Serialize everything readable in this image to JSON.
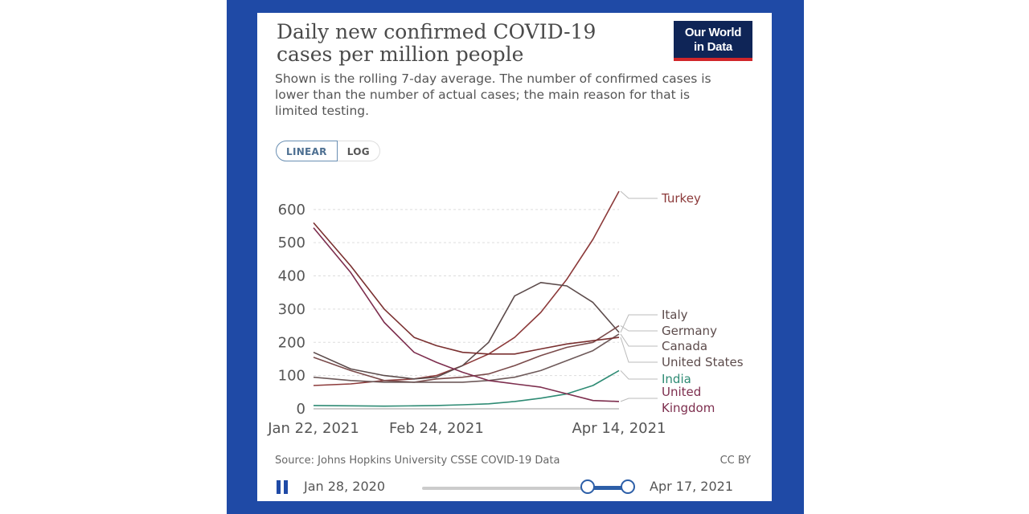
{
  "logo": {
    "line1": "Our World",
    "line2": "in Data"
  },
  "title": "Daily new confirmed COVID-19 cases per million people",
  "subtitle": "Shown is the rolling 7-day average. The number of confirmed cases is lower than the number of actual cases; the main reason for that is limited testing.",
  "scale_toggle": {
    "linear_label": "LINEAR",
    "log_label": "LOG",
    "selected": "LINEAR"
  },
  "source": "Source: Johns Hopkins University CSSE COVID-19 Data",
  "license": "CC BY",
  "timeline": {
    "start_label": "Jan 28, 2020",
    "end_label": "Apr 17, 2021"
  },
  "colors": {
    "frame": "#1f4aa6",
    "turkey": "#8c3a3a",
    "italy": "#5c4b4b",
    "germany": "#7a4b4b",
    "canada": "#6e5a5a",
    "united_states": "#7a3030",
    "india": "#2e8b74",
    "united_kingdom": "#7d2e4e"
  },
  "chart_data": {
    "type": "line",
    "title": "Daily new confirmed COVID-19 cases per million people",
    "subtitle": "Shown is the rolling 7-day average. The number of confirmed cases is lower than the number of actual cases; the main reason for that is limited testing.",
    "x_ticks": [
      "Jan 22, 2021",
      "Feb 24, 2021",
      "Apr 14, 2021"
    ],
    "x_range": [
      "2021-01-22",
      "2021-04-14"
    ],
    "y_ticks": [
      0,
      100,
      200,
      300,
      400,
      500,
      600
    ],
    "ylim": [
      0,
      660
    ],
    "grid": "horizontal dashed",
    "legend": "line labels on right",
    "series": [
      {
        "name": "Turkey",
        "color": "#8c3a3a",
        "points": [
          [
            "2021-01-22",
            70
          ],
          [
            "2021-02-01",
            75
          ],
          [
            "2021-02-10",
            85
          ],
          [
            "2021-02-18",
            90
          ],
          [
            "2021-02-24",
            100
          ],
          [
            "2021-03-03",
            130
          ],
          [
            "2021-03-10",
            165
          ],
          [
            "2021-03-17",
            215
          ],
          [
            "2021-03-24",
            290
          ],
          [
            "2021-03-31",
            390
          ],
          [
            "2021-04-07",
            510
          ],
          [
            "2021-04-14",
            655
          ]
        ]
      },
      {
        "name": "Italy",
        "color": "#5c4b4b",
        "points": [
          [
            "2021-01-22",
            170
          ],
          [
            "2021-02-01",
            120
          ],
          [
            "2021-02-10",
            100
          ],
          [
            "2021-02-18",
            90
          ],
          [
            "2021-02-24",
            95
          ],
          [
            "2021-03-03",
            130
          ],
          [
            "2021-03-10",
            200
          ],
          [
            "2021-03-17",
            340
          ],
          [
            "2021-03-24",
            380
          ],
          [
            "2021-03-31",
            370
          ],
          [
            "2021-04-07",
            320
          ],
          [
            "2021-04-14",
            230
          ]
        ]
      },
      {
        "name": "Germany",
        "color": "#7a4b4b",
        "points": [
          [
            "2021-01-22",
            155
          ],
          [
            "2021-02-01",
            115
          ],
          [
            "2021-02-10",
            85
          ],
          [
            "2021-02-18",
            80
          ],
          [
            "2021-02-24",
            90
          ],
          [
            "2021-03-03",
            95
          ],
          [
            "2021-03-10",
            105
          ],
          [
            "2021-03-17",
            130
          ],
          [
            "2021-03-24",
            160
          ],
          [
            "2021-03-31",
            185
          ],
          [
            "2021-04-07",
            200
          ],
          [
            "2021-04-14",
            250
          ]
        ]
      },
      {
        "name": "Canada",
        "color": "#6e5a5a",
        "points": [
          [
            "2021-01-22",
            95
          ],
          [
            "2021-02-01",
            85
          ],
          [
            "2021-02-10",
            80
          ],
          [
            "2021-02-18",
            80
          ],
          [
            "2021-02-24",
            80
          ],
          [
            "2021-03-03",
            80
          ],
          [
            "2021-03-10",
            85
          ],
          [
            "2021-03-17",
            95
          ],
          [
            "2021-03-24",
            115
          ],
          [
            "2021-03-31",
            145
          ],
          [
            "2021-04-07",
            175
          ],
          [
            "2021-04-14",
            225
          ]
        ]
      },
      {
        "name": "United States",
        "color": "#7a3030",
        "points": [
          [
            "2021-01-22",
            560
          ],
          [
            "2021-02-01",
            430
          ],
          [
            "2021-02-10",
            300
          ],
          [
            "2021-02-18",
            215
          ],
          [
            "2021-02-24",
            190
          ],
          [
            "2021-03-03",
            170
          ],
          [
            "2021-03-10",
            165
          ],
          [
            "2021-03-17",
            165
          ],
          [
            "2021-03-24",
            180
          ],
          [
            "2021-03-31",
            195
          ],
          [
            "2021-04-07",
            205
          ],
          [
            "2021-04-14",
            215
          ]
        ]
      },
      {
        "name": "India",
        "color": "#2e8b74",
        "points": [
          [
            "2021-01-22",
            10
          ],
          [
            "2021-02-01",
            9
          ],
          [
            "2021-02-10",
            8
          ],
          [
            "2021-02-18",
            9
          ],
          [
            "2021-02-24",
            10
          ],
          [
            "2021-03-03",
            12
          ],
          [
            "2021-03-10",
            15
          ],
          [
            "2021-03-17",
            22
          ],
          [
            "2021-03-24",
            32
          ],
          [
            "2021-03-31",
            45
          ],
          [
            "2021-04-07",
            70
          ],
          [
            "2021-04-14",
            115
          ]
        ]
      },
      {
        "name": "United Kingdom",
        "color": "#7d2e4e",
        "points": [
          [
            "2021-01-22",
            545
          ],
          [
            "2021-02-01",
            410
          ],
          [
            "2021-02-10",
            260
          ],
          [
            "2021-02-18",
            170
          ],
          [
            "2021-02-24",
            140
          ],
          [
            "2021-03-03",
            110
          ],
          [
            "2021-03-10",
            85
          ],
          [
            "2021-03-17",
            75
          ],
          [
            "2021-03-24",
            65
          ],
          [
            "2021-03-31",
            45
          ],
          [
            "2021-04-07",
            25
          ],
          [
            "2021-04-14",
            22
          ]
        ]
      }
    ],
    "end_labels": [
      {
        "series": "Turkey",
        "text": "Turkey",
        "color": "#8c3a3a"
      },
      {
        "series": "Italy",
        "text": "Italy",
        "color": "#5c4b4b"
      },
      {
        "series": "Germany",
        "text": "Germany",
        "color": "#5c4b4b"
      },
      {
        "series": "Canada",
        "text": "Canada",
        "color": "#5c4b4b"
      },
      {
        "series": "United States",
        "text": "United States",
        "color": "#5c4b4b"
      },
      {
        "series": "India",
        "text": "India",
        "color": "#2e8b74"
      },
      {
        "series": "United Kingdom",
        "text": "United Kingdom",
        "color": "#7d2e4e"
      }
    ]
  }
}
